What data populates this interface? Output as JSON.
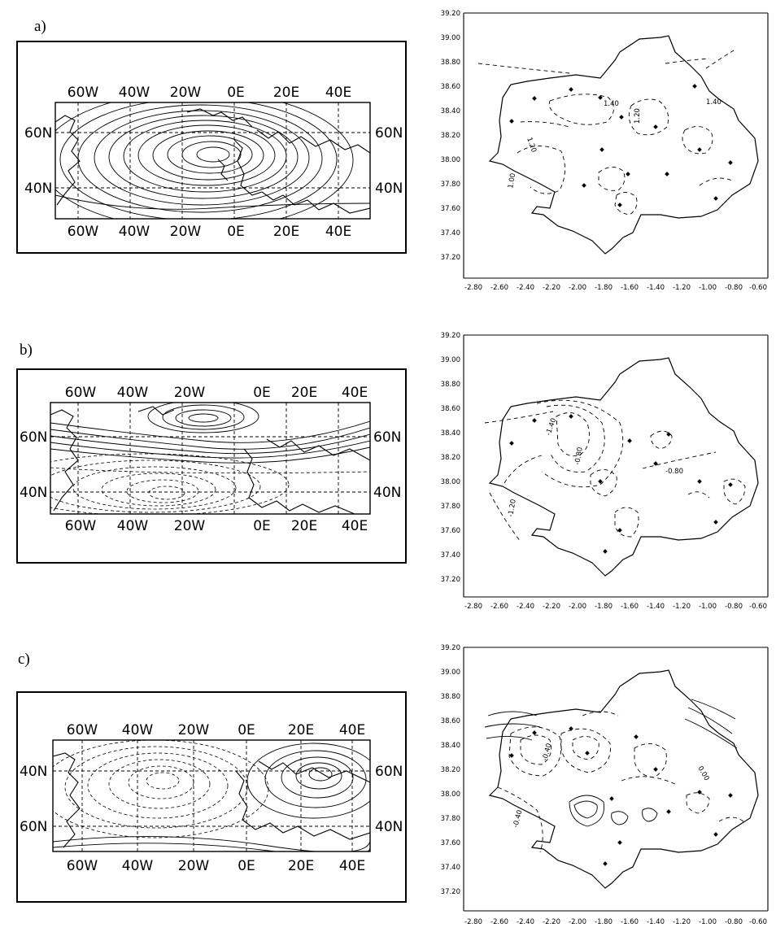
{
  "panels": [
    {
      "label": "a)",
      "map": {
        "lon_labels": [
          "60W",
          "40W",
          "20W",
          "0E",
          "20E",
          "40E"
        ],
        "lat_left": [
          "60N",
          "40N"
        ],
        "lat_right": [
          "60N",
          "40N"
        ]
      },
      "contour_label_values": [
        "1.40",
        "1.20",
        "1.20",
        "1.40",
        "1.00"
      ]
    },
    {
      "label": "b)",
      "map": {
        "lon_labels": [
          "60W",
          "40W",
          "20W",
          "0E",
          "20E",
          "40E"
        ],
        "lat_left": [
          "60N",
          "40N"
        ],
        "lat_right": [
          "60N",
          "40N"
        ]
      },
      "contour_label_values": [
        "-1.40",
        "-0.80",
        "-0.80",
        "-1.20"
      ]
    },
    {
      "label": "c)",
      "map": {
        "lon_labels": [
          "60W",
          "40W",
          "20W",
          "0E",
          "20E",
          "40E"
        ],
        "lat_left": [
          "40N",
          "60N"
        ],
        "lat_right": [
          "60N",
          "40N"
        ]
      },
      "contour_label_values": [
        "-0.40",
        "0.00",
        "-0.40"
      ]
    }
  ],
  "region_axes": {
    "y_ticks": [
      "39.20",
      "39.00",
      "38.80",
      "38.60",
      "38.40",
      "38.20",
      "38.00",
      "37.80",
      "37.60",
      "37.40",
      "37.20"
    ],
    "x_ticks": [
      "-2.80",
      "-2.60",
      "-2.40",
      "-2.20",
      "-2.00",
      "-1.80",
      "-1.60",
      "-1.40",
      "-1.20",
      "-1.00",
      "-0.80",
      "-0.60"
    ]
  }
}
